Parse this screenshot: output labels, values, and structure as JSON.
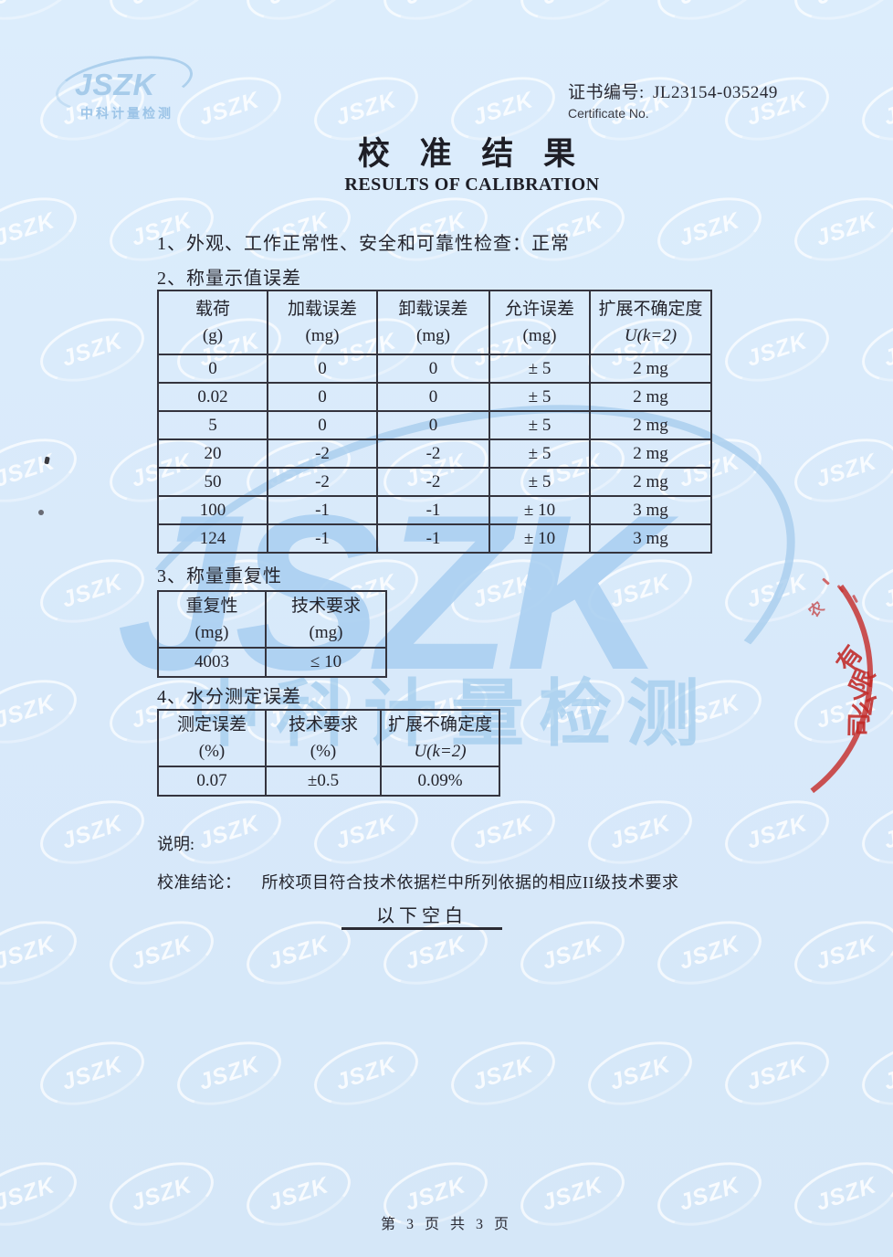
{
  "watermark": {
    "brand": "JSZK",
    "brand_cn": "中科计量检测"
  },
  "logo": {
    "text": "JSZK",
    "subtext": "中科计量检测"
  },
  "header": {
    "cert_label": "证书编号:",
    "cert_no": "JL23154-035249",
    "cert_label_en": "Certificate No.",
    "title_cn": "校 准 结 果",
    "title_en": "RESULTS OF CALIBRATION"
  },
  "sections": {
    "item1": "1、外观、工作正常性、安全和可靠性检查：正常",
    "item2": "2、称量示值误差",
    "item3": "3、称量重复性",
    "item4": "4、水分测定误差"
  },
  "table_weighing_error": {
    "headers": [
      {
        "l1": "载荷",
        "l2": "(g)"
      },
      {
        "l1": "加载误差",
        "l2": "(mg)"
      },
      {
        "l1": "卸载误差",
        "l2": "(mg)"
      },
      {
        "l1": "允许误差",
        "l2": "(mg)"
      },
      {
        "l1": "扩展不确定度",
        "l2": "U(k=2)"
      }
    ],
    "rows": [
      [
        "0",
        "0",
        "0",
        "± 5",
        "2 mg"
      ],
      [
        "0.02",
        "0",
        "0",
        "± 5",
        "2 mg"
      ],
      [
        "5",
        "0",
        "0",
        "± 5",
        "2 mg"
      ],
      [
        "20",
        "-2",
        "-2",
        "± 5",
        "2 mg"
      ],
      [
        "50",
        "-2",
        "-2",
        "± 5",
        "2 mg"
      ],
      [
        "100",
        "-1",
        "-1",
        "± 10",
        "3 mg"
      ],
      [
        "124",
        "-1",
        "-1",
        "± 10",
        "3 mg"
      ]
    ]
  },
  "table_repeatability": {
    "headers": [
      {
        "l1": "重复性",
        "l2": "(mg)"
      },
      {
        "l1": "技术要求",
        "l2": "(mg)"
      }
    ],
    "rows": [
      [
        "4003",
        "≤ 10"
      ]
    ]
  },
  "table_moisture": {
    "headers": [
      {
        "l1": "测定误差",
        "l2": "(%)"
      },
      {
        "l1": "技术要求",
        "l2": "(%)"
      },
      {
        "l1": "扩展不确定度",
        "l2": "U(k=2)"
      }
    ],
    "rows": [
      [
        "0.07",
        "±0.5",
        "0.09%"
      ]
    ]
  },
  "notes": {
    "label": "说明:",
    "conclusion_label": "校准结论：",
    "conclusion_text": "所校项目符合技术依据栏中所列依据的相应II级技术要求",
    "blank_below": "以下空白"
  },
  "footer": {
    "page_text": "第 3 页 共 3 页"
  },
  "stamp": {
    "partial_char": "农",
    "chars": [
      "有",
      "限",
      "公",
      "司"
    ]
  }
}
